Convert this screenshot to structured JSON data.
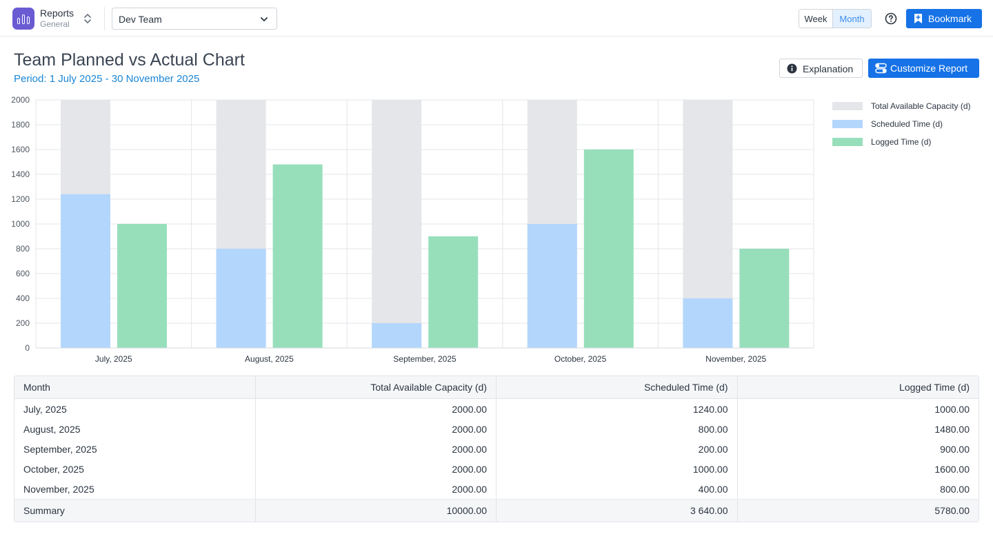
{
  "app": {
    "title": "Reports",
    "subtitle": "General",
    "icon": "bar-chart-icon",
    "color": "#6b5bd2"
  },
  "team_select": {
    "value": "Dev Team"
  },
  "view_toggle": {
    "week": "Week",
    "month": "Month",
    "selected": "Month"
  },
  "bookmark": {
    "label": "Bookmark"
  },
  "page": {
    "title": "Team Planned vs Actual Chart",
    "period": "Period: 1 July 2025 - 30 November 2025"
  },
  "actions": {
    "explanation": "Explanation",
    "customize": "Customize Report"
  },
  "colors": {
    "accent": "#1672e6",
    "capacity": "#e5e6e9",
    "scheduled": "#b3d6fd",
    "logged": "#97dfbb"
  },
  "chart_data": {
    "type": "bar",
    "categories": [
      "July, 2025",
      "August, 2025",
      "September, 2025",
      "October, 2025",
      "November, 2025"
    ],
    "series": [
      {
        "name": "Total Available Capacity (d)",
        "values": [
          2000,
          2000,
          2000,
          2000,
          2000
        ],
        "color": "#e5e6e9"
      },
      {
        "name": "Scheduled Time (d)",
        "values": [
          1240,
          800,
          200,
          1000,
          400
        ],
        "color": "#b3d6fd"
      },
      {
        "name": "Logged Time (d)",
        "values": [
          1000,
          1480,
          900,
          1600,
          800
        ],
        "color": "#97dfbb"
      }
    ],
    "ylim": [
      0,
      2000
    ],
    "yticks": [
      0,
      200,
      400,
      600,
      800,
      1000,
      1200,
      1400,
      1600,
      1800,
      2000
    ],
    "grid": true,
    "legend": "right",
    "note": "Capacity drawn behind scheduled time (overlaid)"
  },
  "table": {
    "headers": [
      "Month",
      "Total Available Capacity (d)",
      "Scheduled Time (d)",
      "Logged Time (d)"
    ],
    "rows": [
      [
        "July, 2025",
        "2000.00",
        "1240.00",
        "1000.00"
      ],
      [
        "August, 2025",
        "2000.00",
        "800.00",
        "1480.00"
      ],
      [
        "September, 2025",
        "2000.00",
        "200.00",
        "900.00"
      ],
      [
        "October, 2025",
        "2000.00",
        "1000.00",
        "1600.00"
      ],
      [
        "November, 2025",
        "2000.00",
        "400.00",
        "800.00"
      ]
    ],
    "summary": [
      "Summary",
      "10000.00",
      "3 640.00",
      "5780.00"
    ]
  }
}
